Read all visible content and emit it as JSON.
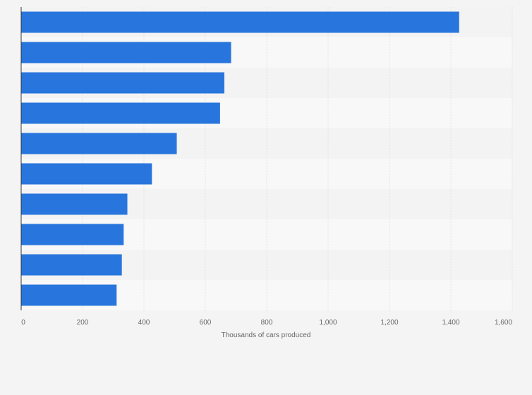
{
  "colors": {
    "bar": "#2876dd",
    "band_light": "#f8f8f8",
    "band_dark": "#f3f3f3",
    "grid": "#e2e2e2",
    "axis": "#333333",
    "background": "#f4f4f4"
  },
  "chart_data": {
    "type": "bar",
    "orientation": "horizontal",
    "title": "",
    "xlabel": "Thousands of cars produced",
    "ylabel": "",
    "xlim": [
      0,
      1600
    ],
    "ticks": [
      0,
      200,
      400,
      600,
      800,
      1000,
      1200,
      1400,
      1600
    ],
    "tick_labels": [
      "0",
      "200",
      "400",
      "600",
      "800",
      "1,000",
      "1,200",
      "1,400",
      "1,600"
    ],
    "values": [
      1427,
      684,
      662,
      648,
      507,
      426,
      346,
      334,
      328,
      311
    ],
    "grid": true,
    "legend": "none"
  }
}
